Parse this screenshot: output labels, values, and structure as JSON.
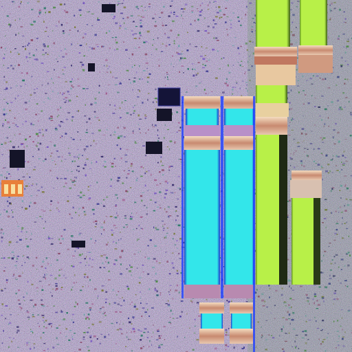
{
  "palette": {
    "background_base": "#2a2350",
    "speckle": [
      "#3b3270",
      "#5a4aa0",
      "#7a5ac0",
      "#2f7a6a",
      "#4f8a4a",
      "#7a7a40",
      "#8a4a6a",
      "#3a3a90",
      "#6fa0a8",
      "#a06090"
    ],
    "cyan_block": "#33e6ea",
    "cyan_edge": "#1a3acf",
    "green_block": "#b8f048",
    "green_edge": "#5a8a20",
    "cap_light": "#f4dcc0",
    "cap_dark": "#c88a70",
    "dark_pad": "#141428",
    "orange_pad": "#e8803a"
  },
  "features": [
    {
      "name": "cyan-pillar",
      "count": 2
    },
    {
      "name": "green-pillar",
      "count": 4
    },
    {
      "name": "small-cyan-cell",
      "count": 2
    },
    {
      "name": "dark-pad",
      "count": 7
    },
    {
      "name": "orange-pad",
      "count": 1
    }
  ]
}
